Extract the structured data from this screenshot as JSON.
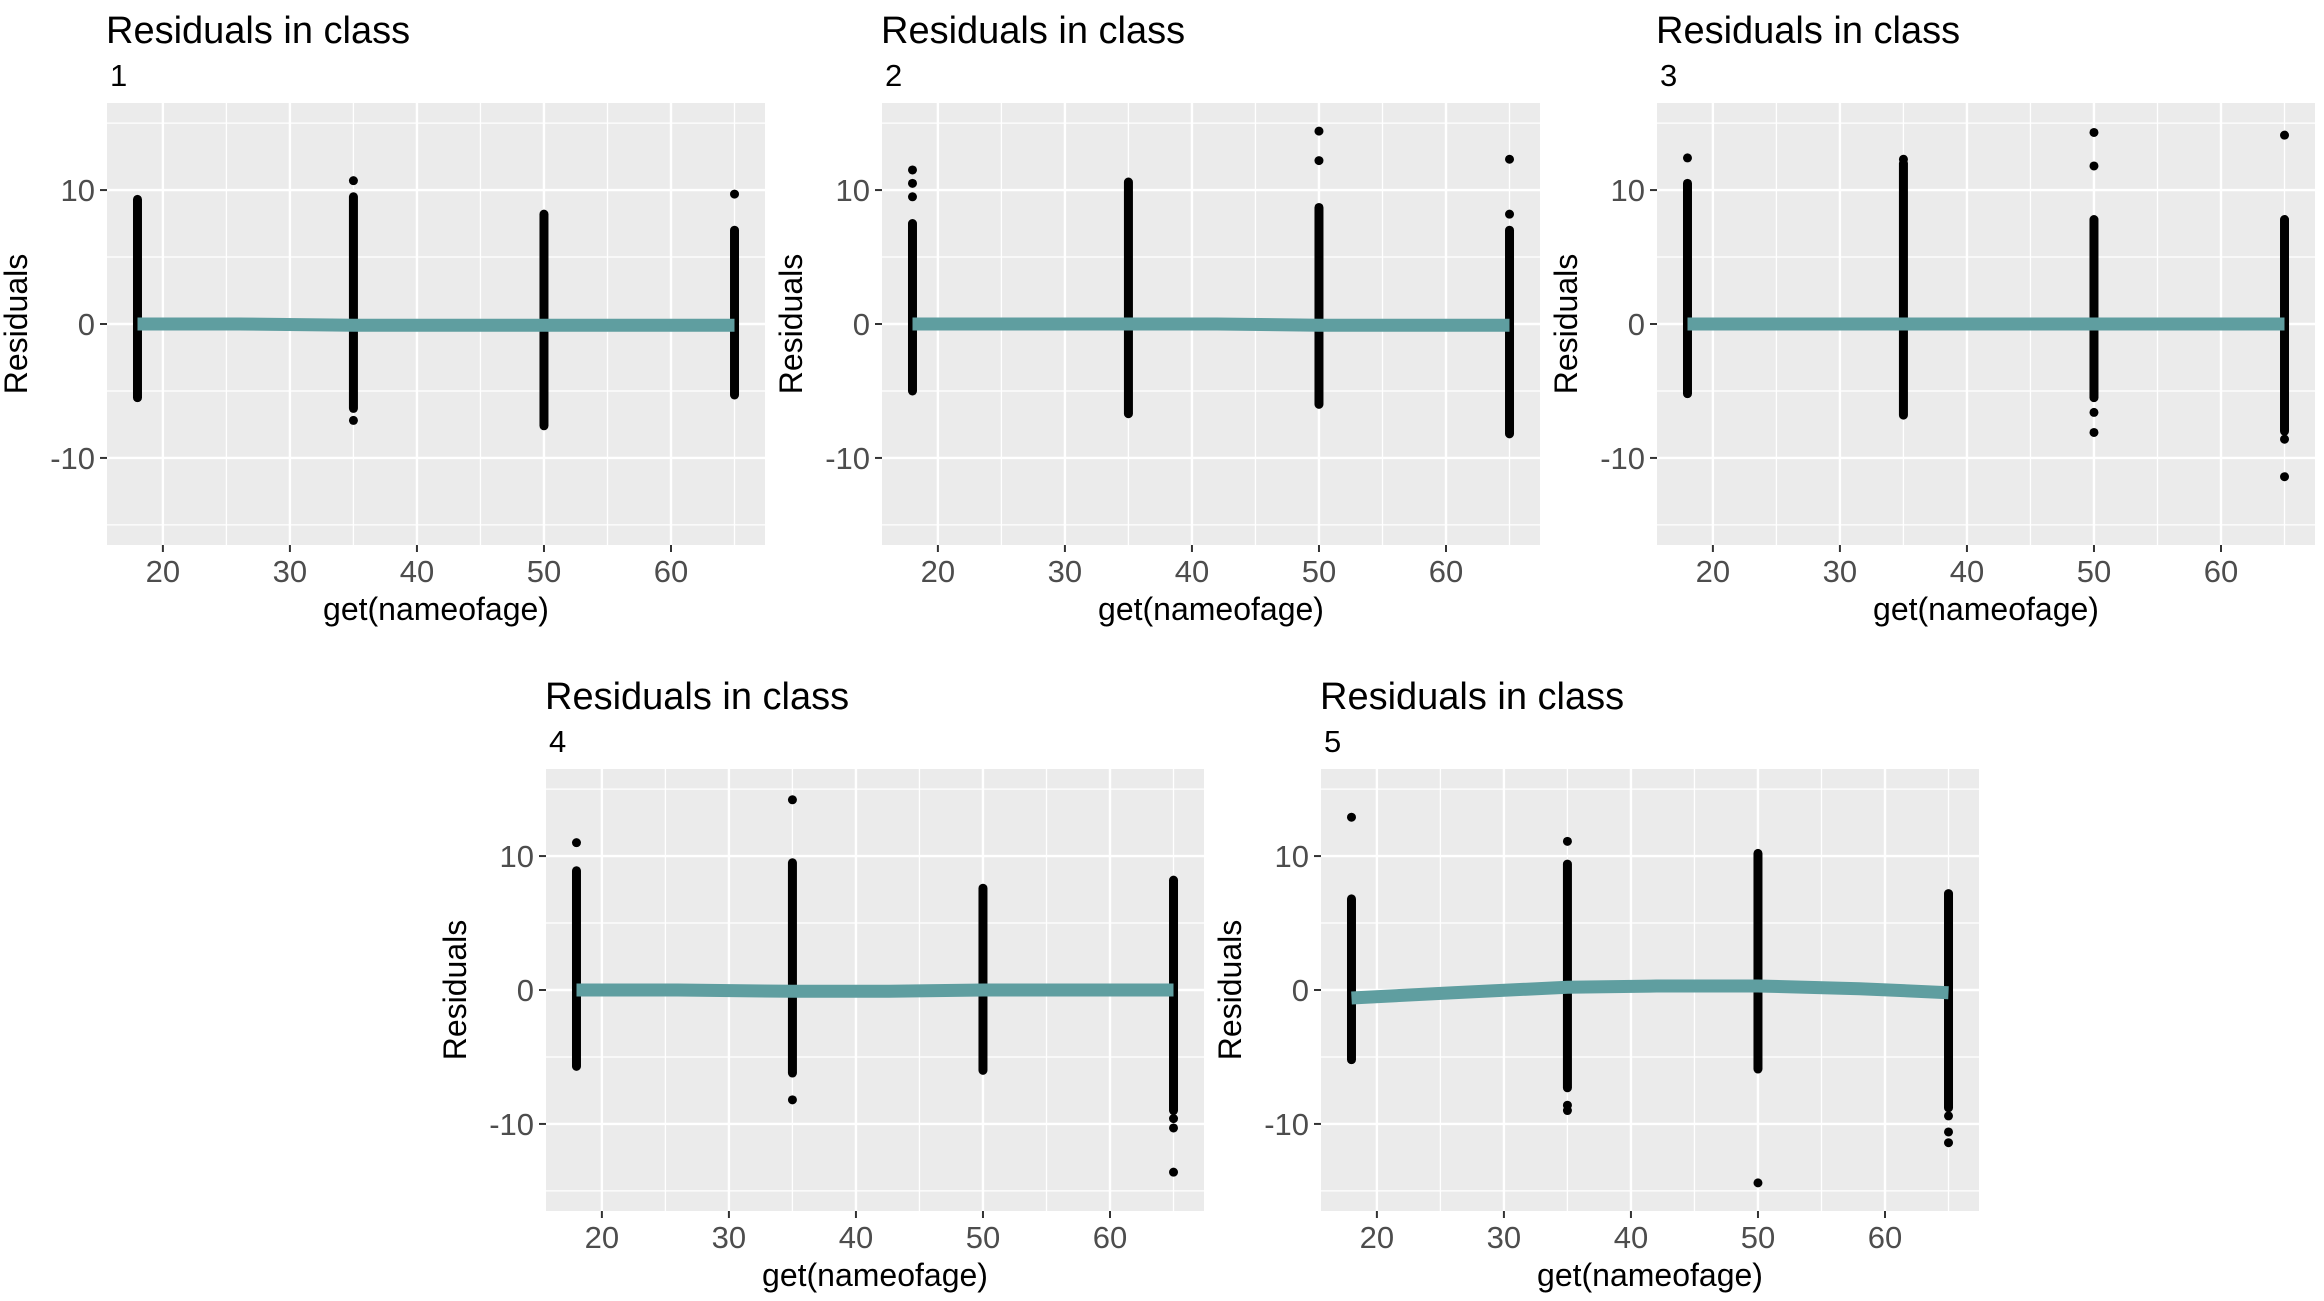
{
  "chart_data": [
    {
      "type": "scatter",
      "title": "Residuals in class",
      "subtitle": "1",
      "xlabel": "get(nameofage)",
      "ylabel": "Residuals",
      "xlim": [
        15.6,
        67.4
      ],
      "ylim": [
        -16.5,
        16.5
      ],
      "xticks": [
        20,
        30,
        40,
        50,
        60
      ],
      "yticks": [
        -10,
        0,
        10
      ],
      "grid": true,
      "point_color": "#000000",
      "line_color": "#5f9ea0",
      "strips": [
        {
          "x": 18,
          "min": -5.5,
          "max": 9.3
        },
        {
          "x": 35,
          "min": -6.3,
          "max": 9.5
        },
        {
          "x": 50,
          "min": -7.6,
          "max": 8.2
        },
        {
          "x": 65,
          "min": -5.3,
          "max": 7.0
        }
      ],
      "outliers": [
        {
          "x": 35,
          "y": -7.2
        },
        {
          "x": 35,
          "y": 10.7
        },
        {
          "x": 65,
          "y": 9.7
        }
      ],
      "smooth": [
        {
          "x": 18,
          "y": 0.0
        },
        {
          "x": 26,
          "y": 0.0
        },
        {
          "x": 35,
          "y": -0.1
        },
        {
          "x": 50,
          "y": -0.1
        },
        {
          "x": 65,
          "y": -0.1
        }
      ]
    },
    {
      "type": "scatter",
      "title": "Residuals in class",
      "subtitle": "2",
      "xlabel": "get(nameofage)",
      "ylabel": "Residuals",
      "xlim": [
        15.6,
        67.4
      ],
      "ylim": [
        -16.5,
        16.5
      ],
      "xticks": [
        20,
        30,
        40,
        50,
        60
      ],
      "yticks": [
        -10,
        0,
        10
      ],
      "grid": true,
      "point_color": "#000000",
      "line_color": "#5f9ea0",
      "strips": [
        {
          "x": 18,
          "min": -5.0,
          "max": 7.5
        },
        {
          "x": 35,
          "min": -6.7,
          "max": 10.6
        },
        {
          "x": 50,
          "min": -6.0,
          "max": 8.7
        },
        {
          "x": 65,
          "min": -8.2,
          "max": 7.0
        }
      ],
      "outliers": [
        {
          "x": 18,
          "y": 11.5
        },
        {
          "x": 18,
          "y": 10.5
        },
        {
          "x": 18,
          "y": 9.5
        },
        {
          "x": 50,
          "y": 14.4
        },
        {
          "x": 50,
          "y": 12.2
        },
        {
          "x": 65,
          "y": 12.3
        },
        {
          "x": 65,
          "y": 8.2
        }
      ],
      "smooth": [
        {
          "x": 18,
          "y": 0.0
        },
        {
          "x": 35,
          "y": 0.0
        },
        {
          "x": 42,
          "y": 0.0
        },
        {
          "x": 50,
          "y": -0.1
        },
        {
          "x": 65,
          "y": -0.1
        }
      ]
    },
    {
      "type": "scatter",
      "title": "Residuals in class",
      "subtitle": "3",
      "xlabel": "get(nameofage)",
      "ylabel": "Residuals",
      "xlim": [
        15.6,
        67.4
      ],
      "ylim": [
        -16.5,
        16.5
      ],
      "xticks": [
        20,
        30,
        40,
        50,
        60
      ],
      "yticks": [
        -10,
        0,
        10
      ],
      "grid": true,
      "point_color": "#000000",
      "line_color": "#5f9ea0",
      "strips": [
        {
          "x": 18,
          "min": -5.2,
          "max": 10.5
        },
        {
          "x": 35,
          "min": -6.8,
          "max": 12.0
        },
        {
          "x": 50,
          "min": -5.5,
          "max": 7.8
        },
        {
          "x": 65,
          "min": -8.0,
          "max": 7.8
        }
      ],
      "outliers": [
        {
          "x": 18,
          "y": 12.4
        },
        {
          "x": 35,
          "y": 12.3
        },
        {
          "x": 50,
          "y": 14.3
        },
        {
          "x": 50,
          "y": 11.8
        },
        {
          "x": 50,
          "y": -6.6
        },
        {
          "x": 50,
          "y": -8.1
        },
        {
          "x": 65,
          "y": 14.1
        },
        {
          "x": 65,
          "y": -8.6
        },
        {
          "x": 65,
          "y": -11.4
        }
      ],
      "smooth": [
        {
          "x": 18,
          "y": 0.0
        },
        {
          "x": 35,
          "y": 0.0
        },
        {
          "x": 50,
          "y": 0.0
        },
        {
          "x": 65,
          "y": 0.0
        }
      ]
    },
    {
      "type": "scatter",
      "title": "Residuals in class",
      "subtitle": "4",
      "xlabel": "get(nameofage)",
      "ylabel": "Residuals",
      "xlim": [
        15.6,
        67.4
      ],
      "ylim": [
        -16.5,
        16.5
      ],
      "xticks": [
        20,
        30,
        40,
        50,
        60
      ],
      "yticks": [
        -10,
        0,
        10
      ],
      "grid": true,
      "point_color": "#000000",
      "line_color": "#5f9ea0",
      "strips": [
        {
          "x": 18,
          "min": -5.7,
          "max": 8.9
        },
        {
          "x": 35,
          "min": -6.2,
          "max": 9.5
        },
        {
          "x": 50,
          "min": -6.0,
          "max": 7.6
        },
        {
          "x": 65,
          "min": -9.0,
          "max": 8.2
        }
      ],
      "outliers": [
        {
          "x": 18,
          "y": 11.0
        },
        {
          "x": 35,
          "y": 14.2
        },
        {
          "x": 35,
          "y": -8.2
        },
        {
          "x": 65,
          "y": -9.6
        },
        {
          "x": 65,
          "y": -10.3
        },
        {
          "x": 65,
          "y": -13.6
        }
      ],
      "smooth": [
        {
          "x": 18,
          "y": 0.0
        },
        {
          "x": 26,
          "y": 0.0
        },
        {
          "x": 35,
          "y": -0.1
        },
        {
          "x": 42,
          "y": -0.1
        },
        {
          "x": 50,
          "y": 0.0
        },
        {
          "x": 65,
          "y": 0.0
        }
      ]
    },
    {
      "type": "scatter",
      "title": "Residuals in class",
      "subtitle": "5",
      "xlabel": "get(nameofage)",
      "ylabel": "Residuals",
      "xlim": [
        15.6,
        67.4
      ],
      "ylim": [
        -16.5,
        16.5
      ],
      "xticks": [
        20,
        30,
        40,
        50,
        60
      ],
      "yticks": [
        -10,
        0,
        10
      ],
      "grid": true,
      "point_color": "#000000",
      "line_color": "#5f9ea0",
      "strips": [
        {
          "x": 18,
          "min": -5.2,
          "max": 6.8
        },
        {
          "x": 35,
          "min": -7.3,
          "max": 9.4
        },
        {
          "x": 50,
          "min": -5.9,
          "max": 10.2
        },
        {
          "x": 65,
          "min": -8.8,
          "max": 7.2
        }
      ],
      "outliers": [
        {
          "x": 18,
          "y": 12.9
        },
        {
          "x": 35,
          "y": 11.1
        },
        {
          "x": 35,
          "y": -8.6
        },
        {
          "x": 35,
          "y": -9.0
        },
        {
          "x": 50,
          "y": -14.4
        },
        {
          "x": 65,
          "y": -9.4
        },
        {
          "x": 65,
          "y": -10.6
        },
        {
          "x": 65,
          "y": -11.4
        }
      ],
      "smooth": [
        {
          "x": 18,
          "y": -0.6
        },
        {
          "x": 26,
          "y": -0.2
        },
        {
          "x": 35,
          "y": 0.2
        },
        {
          "x": 42,
          "y": 0.3
        },
        {
          "x": 50,
          "y": 0.3
        },
        {
          "x": 58,
          "y": 0.1
        },
        {
          "x": 65,
          "y": -0.2
        }
      ]
    }
  ]
}
